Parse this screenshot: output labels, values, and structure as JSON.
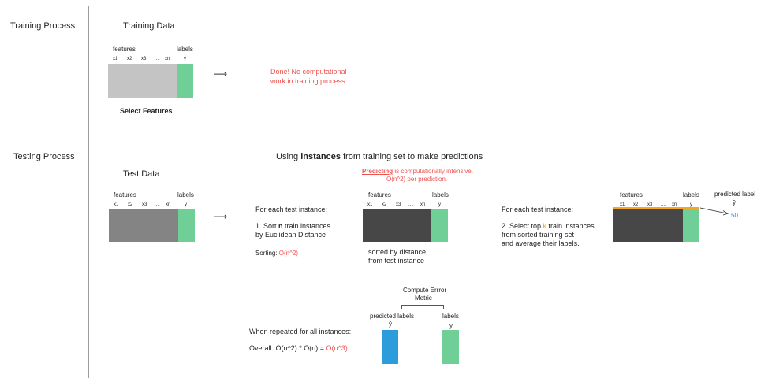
{
  "sections": {
    "training": "Training Process",
    "testing": "Testing Process"
  },
  "training": {
    "title": "Training Data",
    "features_label": "features",
    "labels_label": "labels",
    "feature_cols": [
      "x1",
      "x2",
      "x3",
      "....",
      "xn"
    ],
    "y_col": "y",
    "select_features": "Select Features",
    "done_line1": "Done! No computational",
    "done_line2": "work in training process."
  },
  "testing": {
    "heading_pre": "Using ",
    "heading_bold": "instances",
    "heading_post": " from training set to make predictions",
    "test_title": "Test Data",
    "features_label": "features",
    "labels_label": "labels",
    "feature_cols": [
      "x1",
      "x2",
      "x3",
      "....",
      "xn"
    ],
    "y_col": "y",
    "predict_note_bold": "Predicting",
    "predict_note_rest": " is computationally intensive.",
    "predict_note_line2": "O(n^2) per prediction.",
    "step1": {
      "intro": "For each test instance:",
      "line1_pre": "1. Sort ",
      "line1_bold": "n",
      "line1_post": " train instances",
      "line2": "by Euclidean Distance",
      "sorting_label": "Sorting: ",
      "sorting_value": "O(n^2)"
    },
    "sorted_table": {
      "features_label": "features",
      "labels_label": "labels",
      "feature_cols": [
        "x1",
        "x2",
        "x3",
        "....",
        "xn"
      ],
      "y_col": "y",
      "caption_line1": "sorted by distance",
      "caption_line2": "from test instance"
    },
    "step2": {
      "intro": "For each test instance:",
      "line1_pre": "2. Select top ",
      "line1_k": "k",
      "line1_post": " train instances",
      "line2": "from sorted training set",
      "line3": "and average their labels."
    },
    "topk_table": {
      "features_label": "features",
      "labels_label": "labels",
      "feature_cols": [
        "x1",
        "x2",
        "x3",
        "....",
        "xn"
      ],
      "y_col": "y"
    },
    "predicted": {
      "label": "predicted label",
      "symbol": "ŷ",
      "value": "50"
    },
    "error": {
      "compute_line1": "Compute Errror",
      "compute_line2": "Metric",
      "pred_labels": "predicted labels",
      "pred_symbol": "ŷ",
      "labels": "labels",
      "y_symbol": "y",
      "repeated": "When repeated for all instances:",
      "overall_pre": "Overall: O(n^2) * O(n) = ",
      "overall_value": "O(n^3)"
    }
  },
  "colors": {
    "light_gray": "#c4c4c4",
    "mid_gray": "#848484",
    "dark_gray": "#474747",
    "green": "#6fcf97",
    "blue": "#2d9cdb",
    "red": "#ef5350",
    "orange": "#f5a623"
  }
}
